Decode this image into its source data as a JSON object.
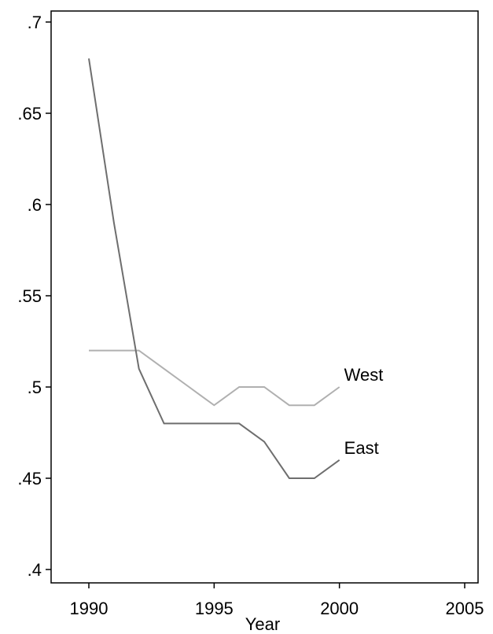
{
  "chart_data": {
    "type": "line",
    "title": "",
    "xlabel": "Year",
    "ylabel": "",
    "xlim": [
      1990,
      2005
    ],
    "ylim": [
      0.4,
      0.7
    ],
    "x_ticks": [
      1990,
      1995,
      2000,
      2005
    ],
    "x_tick_labels": [
      "1990",
      "1995",
      "2000",
      "2005"
    ],
    "y_ticks": [
      0.4,
      0.45,
      0.5,
      0.55,
      0.6,
      0.65,
      0.7
    ],
    "y_tick_labels": [
      ".4",
      ".45",
      ".5",
      ".55",
      ".6",
      ".65",
      ".7"
    ],
    "grid": false,
    "legend": "none",
    "x": [
      1990,
      1991,
      1992,
      1993,
      1994,
      1995,
      1996,
      1997,
      1998,
      1999,
      2000
    ],
    "series": [
      {
        "name": "West",
        "color": "#b0b0b0",
        "values": [
          0.52,
          0.52,
          0.52,
          0.51,
          0.5,
          0.49,
          0.5,
          0.5,
          0.49,
          0.49,
          0.5
        ]
      },
      {
        "name": "East",
        "color": "#6e6e6e",
        "values": [
          0.68,
          0.59,
          0.51,
          0.48,
          0.48,
          0.48,
          0.48,
          0.47,
          0.45,
          0.45,
          0.46
        ]
      }
    ]
  }
}
